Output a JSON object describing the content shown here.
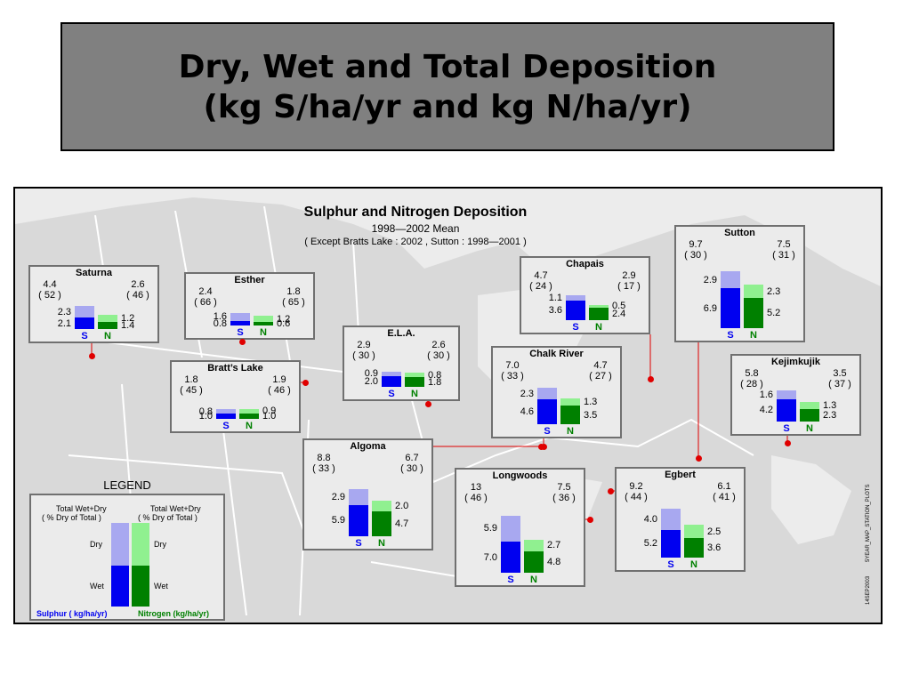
{
  "slide_title": {
    "line1": "Dry, Wet and Total Deposition",
    "line2": "(kg S/ha/yr and kg N/ha/yr)"
  },
  "chart_header": {
    "title": "Sulphur and Nitrogen Deposition",
    "subtitle": "1998—2002 Mean",
    "note": "( Except Bratts Lake : 2002 , Sutton : 1998—2001 )"
  },
  "side_notes": [
    "14SEP2003",
    "5YEAR_MAP_STATION_PLOTS"
  ],
  "colors": {
    "sulphur_wet": "#0000f0",
    "sulphur_dry": "#a8a8f0",
    "nitrogen_wet": "#008000",
    "nitrogen_dry": "#90f090",
    "station_dot": "#e00000"
  },
  "legend": {
    "title": "LEGEND",
    "s_total_label": "Total Wet+Dry",
    "s_pct_label": "( % Dry of Total )",
    "n_total_label": "Total Wet+Dry",
    "n_pct_label": "( % Dry of Total )",
    "dry_label_left": "Dry",
    "wet_label_left": "Wet",
    "dry_label_right": "Dry",
    "wet_label_right": "Wet",
    "sulphur_units": "Sulphur ( kg/ha/yr)",
    "nitrogen_units": "Nitrogen (kg/ha/yr)"
  },
  "chart_data": {
    "type": "bar",
    "title": "Sulphur and Nitrogen Deposition",
    "subtitle": "1998—2002 Mean",
    "units": "kg/ha/yr",
    "series_names": [
      "Sulphur",
      "Nitrogen"
    ],
    "stacks": [
      "Wet",
      "Dry"
    ],
    "bar_labels": [
      "S",
      "N"
    ],
    "stations": [
      {
        "name": "Saturna",
        "s_total": "4.4",
        "s_pct": "( 52 )",
        "s_dry": "2.3",
        "s_wet": "2.1",
        "n_total": "2.6",
        "n_pct": "( 46 )",
        "n_dry": "1.2",
        "n_wet": "1.4"
      },
      {
        "name": "Esther",
        "s_total": "2.4",
        "s_pct": "( 66 )",
        "s_dry": "1.6",
        "s_wet": "0.8",
        "n_total": "1.8",
        "n_pct": "( 65 )",
        "n_dry": "1.2",
        "n_wet": "0.6"
      },
      {
        "name": "Bratt’s Lake",
        "s_total": "1.8",
        "s_pct": "( 45 )",
        "s_dry": "0.8",
        "s_wet": "1.0",
        "n_total": "1.9",
        "n_pct": "( 46 )",
        "n_dry": "0.9",
        "n_wet": "1.0"
      },
      {
        "name": "E.L.A.",
        "s_total": "2.9",
        "s_pct": "( 30 )",
        "s_dry": "0.9",
        "s_wet": "2.0",
        "n_total": "2.6",
        "n_pct": "( 30 )",
        "n_dry": "0.8",
        "n_wet": "1.8"
      },
      {
        "name": "Chapais",
        "s_total": "4.7",
        "s_pct": "( 24 )",
        "s_dry": "1.1",
        "s_wet": "3.6",
        "n_total": "2.9",
        "n_pct": "( 17 )",
        "n_dry": "0.5",
        "n_wet": "2.4"
      },
      {
        "name": "Sutton",
        "s_total": "9.7",
        "s_pct": "( 30 )",
        "s_dry": "2.9",
        "s_wet": "6.9",
        "n_total": "7.5",
        "n_pct": "( 31 )",
        "n_dry": "2.3",
        "n_wet": "5.2"
      },
      {
        "name": "Chalk River",
        "s_total": "7.0",
        "s_pct": "( 33 )",
        "s_dry": "2.3",
        "s_wet": "4.6",
        "n_total": "4.7",
        "n_pct": "( 27 )",
        "n_dry": "1.3",
        "n_wet": "3.5"
      },
      {
        "name": "Kejimkujik",
        "s_total": "5.8",
        "s_pct": "( 28 )",
        "s_dry": "1.6",
        "s_wet": "4.2",
        "n_total": "3.5",
        "n_pct": "( 37 )",
        "n_dry": "1.3",
        "n_wet": "2.3"
      },
      {
        "name": "Algoma",
        "s_total": "8.8",
        "s_pct": "( 33 )",
        "s_dry": "2.9",
        "s_wet": "5.9",
        "n_total": "6.7",
        "n_pct": "( 30 )",
        "n_dry": "2.0",
        "n_wet": "4.7"
      },
      {
        "name": "Longwoods",
        "s_total": "13",
        "s_pct": "( 46 )",
        "s_dry": "5.9",
        "s_wet": "7.0",
        "n_total": "7.5",
        "n_pct": "( 36 )",
        "n_dry": "2.7",
        "n_wet": "4.8"
      },
      {
        "name": "Egbert",
        "s_total": "9.2",
        "s_pct": "( 44 )",
        "s_dry": "4.0",
        "s_wet": "5.2",
        "n_total": "6.1",
        "n_pct": "( 41 )",
        "n_dry": "2.5",
        "n_wet": "3.6"
      }
    ]
  }
}
